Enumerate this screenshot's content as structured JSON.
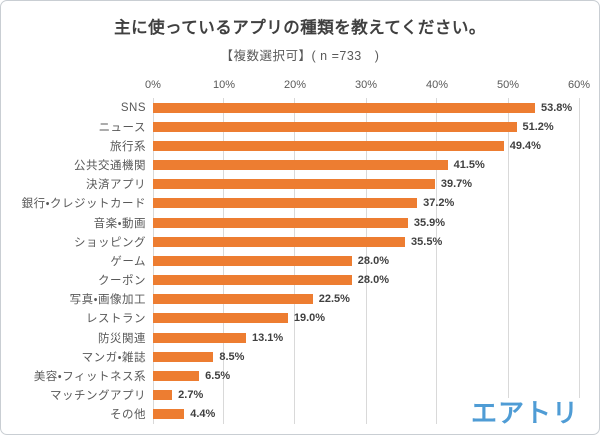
{
  "chart_data": {
    "type": "bar",
    "orientation": "horizontal",
    "title": "主に使っているアプリの種類を教えてください。",
    "subtitle": "【複数選択可】( n =733　)",
    "categories": [
      "SNS",
      "ニュース",
      "旅行系",
      "公共交通機関",
      "決済アプリ",
      "銀行・クレジットカード",
      "音楽・動画",
      "ショッピング",
      "ゲーム",
      "クーポン",
      "写真・画像加工",
      "レストラン",
      "防災関連",
      "マンガ・雑誌",
      "美容・フィットネス系",
      "マッチングアプリ",
      "その他"
    ],
    "values": [
      53.8,
      51.2,
      49.4,
      41.5,
      39.7,
      37.2,
      35.9,
      35.5,
      28.0,
      28.0,
      22.5,
      19.0,
      13.1,
      8.5,
      6.5,
      2.7,
      4.4
    ],
    "value_labels": [
      "53.8%",
      "51.2%",
      "49.4%",
      "41.5%",
      "39.7%",
      "37.2%",
      "35.9%",
      "35.5%",
      "28.0%",
      "28.0%",
      "22.5%",
      "19.0%",
      "13.1%",
      "8.5%",
      "6.5%",
      "2.7%",
      "4.4%"
    ],
    "x_ticks": [
      "0%",
      "10%",
      "20%",
      "30%",
      "40%",
      "50%",
      "60%"
    ],
    "xlabel": "",
    "ylabel": "",
    "xlim": [
      0,
      60
    ],
    "grid": true,
    "legend": false,
    "bar_color": "#ED7D31",
    "gridline_color": "#D9D9D9",
    "label_color": "#595959",
    "value_label_color": "#404040"
  },
  "branding": {
    "logo_text": "エアトリ",
    "logo_color": "#4F9CD5"
  }
}
